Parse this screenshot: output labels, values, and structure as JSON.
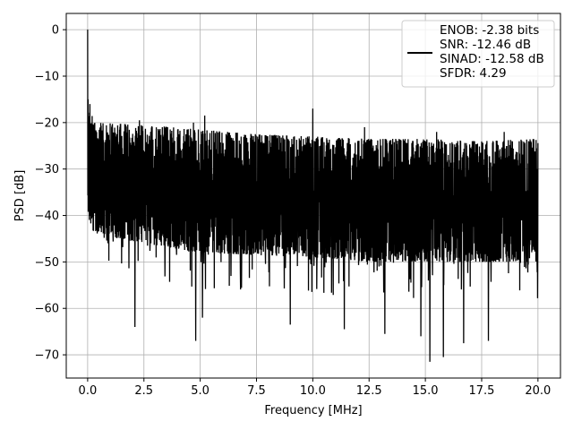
{
  "chart_data": {
    "type": "line",
    "xlabel": "Frequency [MHz]",
    "ylabel": "PSD [dB]",
    "xlim": [
      -0.95,
      21.0
    ],
    "ylim": [
      -75.0,
      3.5
    ],
    "xticks": [
      0.0,
      2.5,
      5.0,
      7.5,
      10.0,
      12.5,
      15.0,
      17.5,
      20.0
    ],
    "xtick_labels": [
      "0.0",
      "2.5",
      "5.0",
      "7.5",
      "10.0",
      "12.5",
      "15.0",
      "17.5",
      "20.0"
    ],
    "yticks": [
      0,
      -10,
      -20,
      -30,
      -40,
      -50,
      -60,
      -70
    ],
    "ytick_labels": [
      "0",
      "−10",
      "−20",
      "−30",
      "−40",
      "−50",
      "−60",
      "−70"
    ],
    "grid": true,
    "legend_position": "top-right",
    "line_color": "#000000",
    "series": [
      {
        "name": "ENOB: -2.38 bits\nSNR: -12.46 dB\nSINAD: -12.58 dB\nSFDR: 4.29",
        "x_range": [
          0.0,
          20.0
        ],
        "peaks": [
          {
            "x": 0.0,
            "y": 0.0
          },
          {
            "x": 0.02,
            "y": -15.0
          },
          {
            "x": 0.1,
            "y": -16.0
          },
          {
            "x": 10.0,
            "y": -17.0
          },
          {
            "x": 5.2,
            "y": -18.5
          },
          {
            "x": 2.3,
            "y": -19.5
          },
          {
            "x": 4.7,
            "y": -20.0
          },
          {
            "x": 12.3,
            "y": -21.0
          },
          {
            "x": 15.5,
            "y": -22.0
          },
          {
            "x": 18.5,
            "y": -22.0
          }
        ],
        "upper_envelope": [
          [
            0.3,
            -20.0
          ],
          [
            2.5,
            -20.5
          ],
          [
            5.0,
            -21.5
          ],
          [
            7.5,
            -22.5
          ],
          [
            10.0,
            -23.0
          ],
          [
            12.5,
            -23.5
          ],
          [
            15.0,
            -23.5
          ],
          [
            17.5,
            -24.0
          ],
          [
            20.0,
            -23.5
          ]
        ],
        "lower_envelope": [
          [
            0.3,
            -44.0
          ],
          [
            2.5,
            -46.0
          ],
          [
            5.0,
            -48.0
          ],
          [
            7.5,
            -48.5
          ],
          [
            10.0,
            -49.0
          ],
          [
            12.5,
            -50.0
          ],
          [
            15.0,
            -50.0
          ],
          [
            17.5,
            -50.0
          ],
          [
            20.0,
            -50.0
          ]
        ],
        "deep_nulls": [
          {
            "x": 2.1,
            "y": -64.0
          },
          {
            "x": 4.8,
            "y": -67.0
          },
          {
            "x": 5.1,
            "y": -62.0
          },
          {
            "x": 9.0,
            "y": -63.5
          },
          {
            "x": 11.4,
            "y": -64.5
          },
          {
            "x": 13.2,
            "y": -65.5
          },
          {
            "x": 14.8,
            "y": -66.0
          },
          {
            "x": 15.2,
            "y": -71.5
          },
          {
            "x": 15.8,
            "y": -70.5
          },
          {
            "x": 16.7,
            "y": -67.5
          },
          {
            "x": 17.8,
            "y": -67.0
          }
        ]
      }
    ],
    "legend": {
      "entries": [
        {
          "text": "ENOB: -2.38 bits"
        },
        {
          "text": "SNR: -12.46 dB"
        },
        {
          "text": "SINAD: -12.58 dB"
        },
        {
          "text": "SFDR: 4.29"
        }
      ]
    }
  }
}
